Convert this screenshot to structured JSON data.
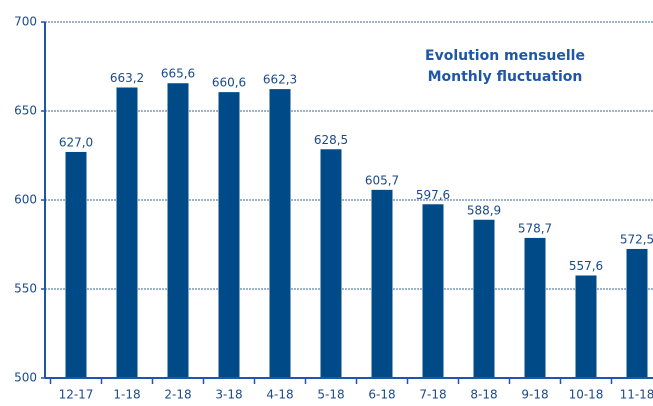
{
  "chart_data": {
    "type": "bar",
    "title": "Evolution mensuelle",
    "subtitle": "Monthly fluctuation",
    "categories": [
      "12-17",
      "1-18",
      "2-18",
      "3-18",
      "4-18",
      "5-18",
      "6-18",
      "7-18",
      "8-18",
      "9-18",
      "10-18",
      "11-18"
    ],
    "values": [
      627.0,
      663.2,
      665.6,
      660.6,
      662.3,
      628.5,
      605.7,
      597.6,
      588.9,
      578.7,
      557.6,
      572.5
    ],
    "value_labels": [
      "627,0",
      "663,2",
      "665,6",
      "660,6",
      "662,3",
      "628,5",
      "605,7",
      "597,6",
      "588,9",
      "578,7",
      "557,6",
      "572,5"
    ],
    "color": "#004a87",
    "ylim": [
      500,
      700
    ],
    "yticks": [
      500,
      550,
      600,
      650,
      700
    ],
    "grid": true
  }
}
